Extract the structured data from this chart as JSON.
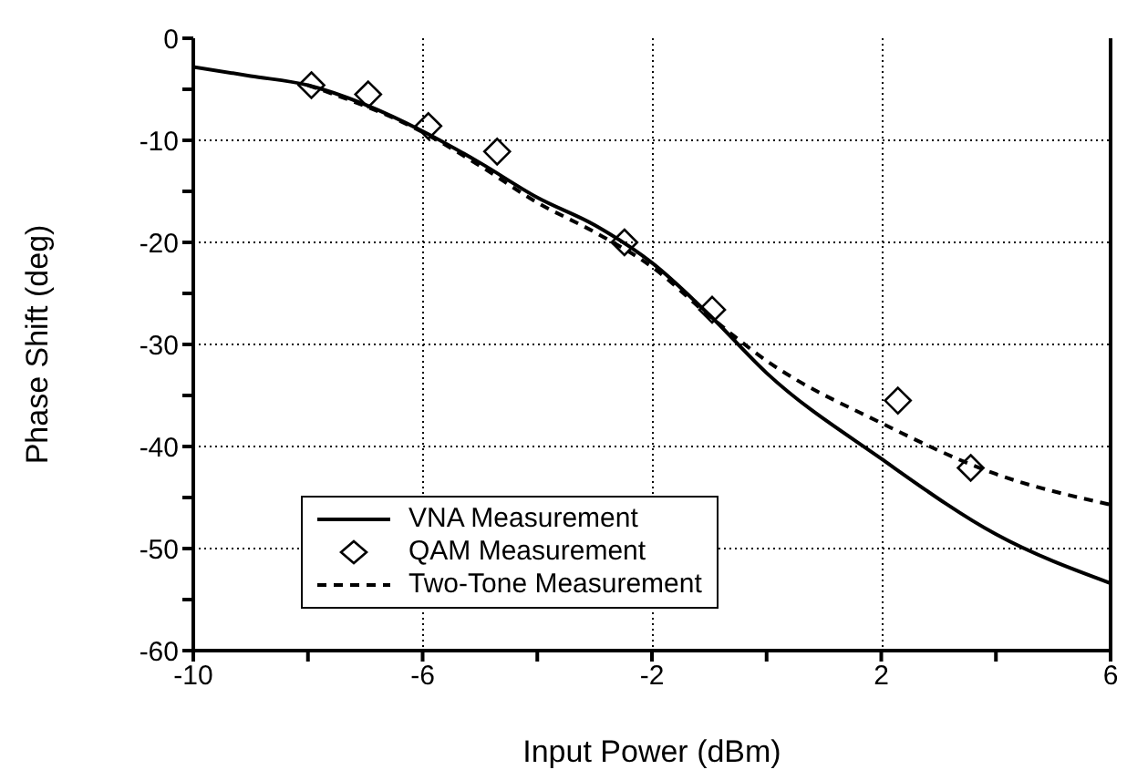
{
  "chart_data": {
    "type": "line",
    "xlabel": "Input Power (dBm)",
    "ylabel": "Phase Shift (deg)",
    "xlim": [
      -10,
      6
    ],
    "xticks": [
      -10,
      {
        "value": -8,
        "label": null
      },
      -6,
      {
        "value": -4,
        "label": null
      },
      -2,
      {
        "value": 0,
        "label": null
      },
      2,
      {
        "value": 4,
        "label": null
      },
      6
    ],
    "ylim": [
      -60,
      0
    ],
    "yticks": [
      -60,
      {
        "value": -55,
        "label": null
      },
      -50,
      {
        "value": -45,
        "label": null
      },
      -40,
      {
        "value": -35,
        "label": null
      },
      -30,
      {
        "value": -25,
        "label": null
      },
      -20,
      {
        "value": -15,
        "label": null
      },
      -10,
      {
        "value": -5,
        "label": null
      },
      0
    ],
    "grid": true,
    "legend": "bottom left",
    "series": [
      {
        "name": "VNA Measurement",
        "color": "#000000",
        "line_style": "solid",
        "marker": "none",
        "x": [
          -10,
          -9,
          -8,
          -7,
          -6,
          -5,
          -4,
          -3,
          -2,
          -1,
          0,
          2,
          4,
          6
        ],
        "values": [
          -2.8,
          -3.7,
          -4.6,
          -6.5,
          -9.1,
          -12.2,
          -15.6,
          -18.3,
          -22,
          -27.1,
          -32.8,
          -41.2,
          -48.6,
          -53.4
        ]
      },
      {
        "name": "QAM Measurement",
        "type": "scatter",
        "color": "#000000",
        "marker": "diamond",
        "x": [
          -7.94,
          -6.95,
          -5.9,
          -4.7,
          -2.48,
          -0.95,
          2.29,
          3.56
        ],
        "values": [
          -4.6,
          -5.5,
          -8.6,
          -11.1,
          -20,
          -26.6,
          -35.5,
          -42.1
        ]
      },
      {
        "name": "Two-Tone Measurement",
        "color": "#000000",
        "line_style": "dashed",
        "marker": "none",
        "x": [
          -8,
          -6,
          -5,
          -4,
          -3,
          -2,
          -1,
          0,
          2,
          4,
          6
        ],
        "values": [
          -4.6,
          -9.2,
          -12.5,
          -16.1,
          -19,
          -22.4,
          -27.2,
          -31.6,
          -37.7,
          -42.7,
          -45.7
        ]
      }
    ]
  }
}
